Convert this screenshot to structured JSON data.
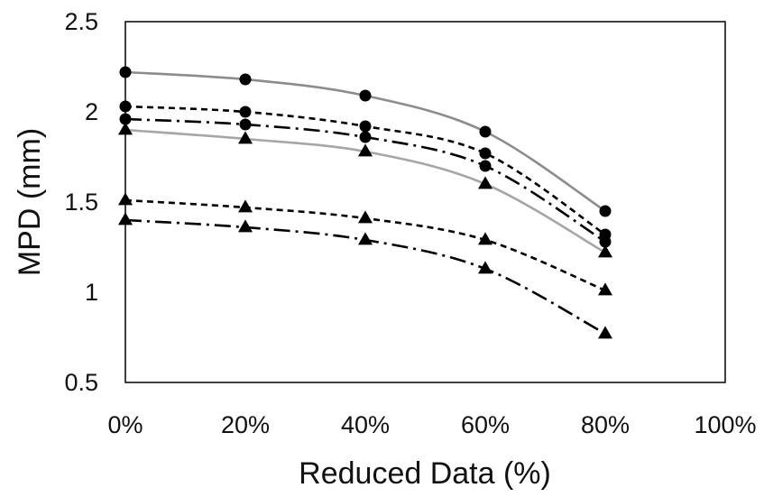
{
  "chart_data": {
    "type": "line",
    "title": "",
    "xlabel": "Reduced Data (%)",
    "ylabel": "MPD (mm)",
    "x": [
      0,
      20,
      40,
      60,
      80
    ],
    "x_tick_values": [
      0,
      20,
      40,
      60,
      80,
      100
    ],
    "x_tick_labels": [
      "0%",
      "20%",
      "40%",
      "60%",
      "80%",
      "100%"
    ],
    "y_tick_values": [
      0.5,
      1,
      1.5,
      2,
      2.5
    ],
    "y_tick_labels": [
      "0.5",
      "1",
      "1.5",
      "2",
      "2.5"
    ],
    "xlim": [
      0,
      100
    ],
    "ylim": [
      0.5,
      2.5
    ],
    "grid": false,
    "legend": "none",
    "series": [
      {
        "values": [
          2.22,
          2.18,
          2.09,
          1.89,
          1.45
        ],
        "marker": "circle",
        "dash": "solid",
        "color": "#8c8c8c"
      },
      {
        "values": [
          2.03,
          2.0,
          1.92,
          1.77,
          1.32
        ],
        "marker": "circle",
        "dash": "short-dash",
        "color": "#000000"
      },
      {
        "values": [
          1.96,
          1.93,
          1.86,
          1.7,
          1.28
        ],
        "marker": "circle",
        "dash": "dash-dot",
        "color": "#000000"
      },
      {
        "values": [
          1.9,
          1.85,
          1.78,
          1.6,
          1.22
        ],
        "marker": "triangle",
        "dash": "solid",
        "color": "#a6a6a6"
      },
      {
        "values": [
          1.51,
          1.47,
          1.41,
          1.29,
          1.01
        ],
        "marker": "triangle",
        "dash": "short-dash",
        "color": "#000000"
      },
      {
        "values": [
          1.4,
          1.36,
          1.29,
          1.13,
          0.77
        ],
        "marker": "triangle",
        "dash": "dash-dot",
        "color": "#000000"
      }
    ]
  }
}
